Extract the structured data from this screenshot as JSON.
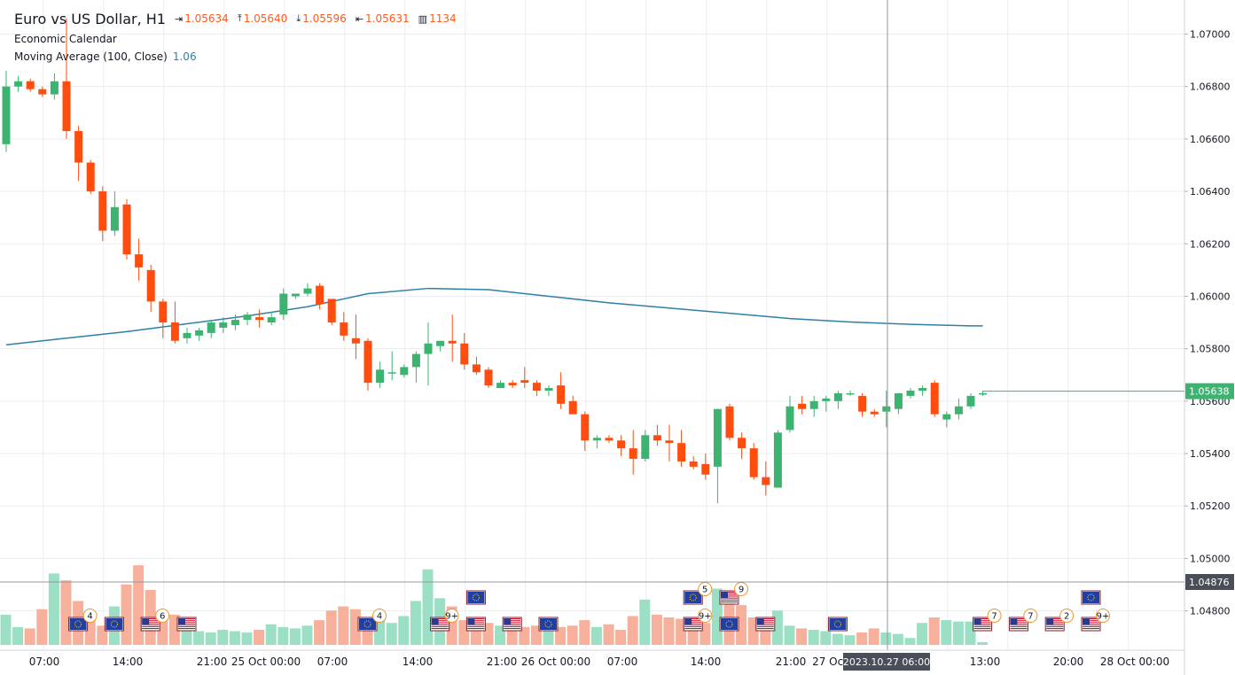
{
  "legend": {
    "symbol": "Euro vs US Dollar, H1",
    "open": "1.05634",
    "high": "1.05640",
    "low": "1.05596",
    "close": "1.05631",
    "volume": "1134",
    "economic_calendar": "Economic Calendar",
    "ma_label": "Moving Average (100, Close)",
    "ma_value": "1.06"
  },
  "colors": {
    "up": "#3cb371",
    "down": "#ff4d0f",
    "up_volume": "#9be0c5",
    "down_volume": "#f7b09b",
    "ma": "#2f7fa8",
    "grid": "#eaedf1",
    "crosshair": "#9598a1",
    "crosshair_tag": "#4a4e59",
    "price_tag": "#3cb371"
  },
  "price_axis": {
    "ticks": [
      "1.07000",
      "1.06800",
      "1.06600",
      "1.06400",
      "1.06200",
      "1.06000",
      "1.05800",
      "1.05600",
      "1.05400",
      "1.05200",
      "1.05000",
      "1.04800"
    ],
    "current_price": "1.05638",
    "crosshair_price": "1.04876"
  },
  "time_axis": {
    "labels": [
      "07:00",
      "14:00",
      "21:00",
      "25 Oct 00:00",
      "07:00",
      "14:00",
      "21:00",
      "26 Oct 00:00",
      "07:00",
      "14:00",
      "21:00",
      "27 Oct",
      "13:00",
      "20:00",
      "28 Oct 00:00"
    ],
    "crosshair_time": "2023.10.27 06:00"
  },
  "chart_data": {
    "type": "candlestick",
    "symbol": "Euro vs US Dollar",
    "timeframe": "H1",
    "y_range": [
      1.0465,
      1.0713
    ],
    "ohlc": [
      [
        1.0658,
        1.0686,
        1.0655,
        1.068
      ],
      [
        1.068,
        1.0684,
        1.0678,
        1.0682
      ],
      [
        1.0682,
        1.0683,
        1.0678,
        1.0679
      ],
      [
        1.0679,
        1.068,
        1.0676,
        1.0677
      ],
      [
        1.0677,
        1.0685,
        1.0675,
        1.0682
      ],
      [
        1.0682,
        1.0706,
        1.066,
        1.0663
      ],
      [
        1.0663,
        1.0665,
        1.0644,
        1.0651
      ],
      [
        1.0651,
        1.0652,
        1.0639,
        1.064
      ],
      [
        1.064,
        1.0642,
        1.0621,
        1.0625
      ],
      [
        1.0625,
        1.064,
        1.0623,
        1.0634
      ],
      [
        1.0635,
        1.0637,
        1.0614,
        1.0616
      ],
      [
        1.0616,
        1.0622,
        1.0606,
        1.0611
      ],
      [
        1.061,
        1.0612,
        1.0594,
        1.0598
      ],
      [
        1.0598,
        1.0599,
        1.0584,
        1.059
      ],
      [
        1.059,
        1.0598,
        1.0582,
        1.0583
      ],
      [
        1.0584,
        1.0588,
        1.0582,
        1.0586
      ],
      [
        1.0585,
        1.0588,
        1.0583,
        1.0587
      ],
      [
        1.0586,
        1.0591,
        1.0584,
        1.059
      ],
      [
        1.0588,
        1.0592,
        1.0586,
        1.059
      ],
      [
        1.0589,
        1.0593,
        1.0587,
        1.0591
      ],
      [
        1.0591,
        1.0594,
        1.0589,
        1.0593
      ],
      [
        1.0592,
        1.0595,
        1.0588,
        1.0591
      ],
      [
        1.059,
        1.0594,
        1.0589,
        1.0592
      ],
      [
        1.0593,
        1.0603,
        1.0591,
        1.0601
      ],
      [
        1.06,
        1.0601,
        1.0599,
        1.0601
      ],
      [
        1.0601,
        1.0605,
        1.06,
        1.0603
      ],
      [
        1.0604,
        1.0605,
        1.0595,
        1.0597
      ],
      [
        1.0599,
        1.0599,
        1.0589,
        1.059
      ],
      [
        1.059,
        1.0594,
        1.0583,
        1.0585
      ],
      [
        1.0584,
        1.0593,
        1.0576,
        1.0582
      ],
      [
        1.0583,
        1.0584,
        1.0564,
        1.0567
      ],
      [
        1.0567,
        1.0575,
        1.0565,
        1.0572
      ],
      [
        1.0571,
        1.0579,
        1.0568,
        1.0571
      ],
      [
        1.057,
        1.0574,
        1.0569,
        1.0573
      ],
      [
        1.0573,
        1.0579,
        1.0567,
        1.0578
      ],
      [
        1.0578,
        1.059,
        1.0566,
        1.0582
      ],
      [
        1.0581,
        1.0583,
        1.0579,
        1.0583
      ],
      [
        1.0583,
        1.0593,
        1.0575,
        1.0582
      ],
      [
        1.0582,
        1.0586,
        1.0572,
        1.0574
      ],
      [
        1.0574,
        1.0577,
        1.057,
        1.0571
      ],
      [
        1.0572,
        1.0573,
        1.0565,
        1.0566
      ],
      [
        1.0565,
        1.0568,
        1.0565,
        1.0567
      ],
      [
        1.0567,
        1.0568,
        1.0565,
        1.0566
      ],
      [
        1.0568,
        1.0573,
        1.0565,
        1.0567
      ],
      [
        1.0567,
        1.0568,
        1.0562,
        1.0564
      ],
      [
        1.0564,
        1.0566,
        1.0562,
        1.0565
      ],
      [
        1.0566,
        1.0571,
        1.0557,
        1.0559
      ],
      [
        1.056,
        1.0562,
        1.0555,
        1.0555
      ],
      [
        1.0555,
        1.0556,
        1.0541,
        1.0545
      ],
      [
        1.0545,
        1.0547,
        1.0542,
        1.0546
      ],
      [
        1.0546,
        1.0547,
        1.0544,
        1.0545
      ],
      [
        1.0545,
        1.0547,
        1.0539,
        1.0542
      ],
      [
        1.0542,
        1.0549,
        1.0532,
        1.0538
      ],
      [
        1.0538,
        1.0549,
        1.0537,
        1.0547
      ],
      [
        1.0547,
        1.0551,
        1.0543,
        1.0545
      ],
      [
        1.0545,
        1.0551,
        1.0537,
        1.0544
      ],
      [
        1.0544,
        1.0549,
        1.0535,
        1.0537
      ],
      [
        1.0537,
        1.0539,
        1.0534,
        1.0535
      ],
      [
        1.0536,
        1.054,
        1.053,
        1.0532
      ],
      [
        1.0535,
        1.0557,
        1.0521,
        1.0557
      ],
      [
        1.0558,
        1.0559,
        1.0545,
        1.0546
      ],
      [
        1.0546,
        1.0548,
        1.0538,
        1.0542
      ],
      [
        1.0542,
        1.0544,
        1.053,
        1.0531
      ],
      [
        1.0531,
        1.0537,
        1.0524,
        1.0528
      ],
      [
        1.0527,
        1.0549,
        1.0527,
        1.0548
      ],
      [
        1.0549,
        1.0562,
        1.0548,
        1.0558
      ],
      [
        1.0559,
        1.0562,
        1.0555,
        1.0557
      ],
      [
        1.0557,
        1.0562,
        1.0554,
        1.056
      ],
      [
        1.056,
        1.0562,
        1.0556,
        1.0561
      ],
      [
        1.056,
        1.0564,
        1.0557,
        1.0563
      ],
      [
        1.0563,
        1.0564,
        1.0562,
        1.0563
      ],
      [
        1.0562,
        1.0563,
        1.0554,
        1.0556
      ],
      [
        1.0556,
        1.0557,
        1.0554,
        1.0555
      ],
      [
        1.0556,
        1.0564,
        1.055,
        1.0558
      ],
      [
        1.0557,
        1.0563,
        1.0555,
        1.0563
      ],
      [
        1.0562,
        1.0565,
        1.0561,
        1.0564
      ],
      [
        1.0564,
        1.0566,
        1.0562,
        1.0565
      ],
      [
        1.0567,
        1.0568,
        1.0554,
        1.0555
      ],
      [
        1.0553,
        1.0556,
        1.055,
        1.0555
      ],
      [
        1.0555,
        1.0561,
        1.0553,
        1.0558
      ],
      [
        1.0558,
        1.0563,
        1.0557,
        1.0562
      ],
      [
        1.0563,
        1.0564,
        1.0562,
        1.0563
      ]
    ],
    "volume": [
      22,
      13,
      12,
      26,
      52,
      47,
      32,
      20,
      14,
      28,
      44,
      58,
      40,
      24,
      22,
      12,
      10,
      9,
      11,
      10,
      9,
      11,
      15,
      13,
      12,
      14,
      18,
      25,
      28,
      26,
      18,
      20,
      16,
      21,
      32,
      55,
      34,
      28,
      18,
      17,
      16,
      14,
      12,
      13,
      14,
      12,
      13,
      14,
      18,
      13,
      15,
      11,
      21,
      33,
      22,
      20,
      19,
      18,
      16,
      41,
      35,
      29,
      20,
      16,
      25,
      14,
      12,
      11,
      10,
      8,
      7,
      9,
      12,
      9,
      8,
      5,
      16,
      20,
      18,
      17,
      17,
      2
    ],
    "moving_average": [
      [
        0,
        1.05815
      ],
      [
        5,
        1.0584
      ],
      [
        10,
        1.05865
      ],
      [
        15,
        1.05895
      ],
      [
        20,
        1.05925
      ],
      [
        25,
        1.0596
      ],
      [
        30,
        1.0601
      ],
      [
        35,
        1.0603
      ],
      [
        40,
        1.06025
      ],
      [
        45,
        1.06
      ],
      [
        50,
        1.05975
      ],
      [
        55,
        1.05955
      ],
      [
        60,
        1.05935
      ],
      [
        65,
        1.05915
      ],
      [
        70,
        1.05902
      ],
      [
        75,
        1.05893
      ],
      [
        80,
        1.05887
      ],
      [
        81,
        1.05887
      ]
    ],
    "calendar_events": [
      {
        "flag": "eu",
        "x_index": 6,
        "badge": "4"
      },
      {
        "flag": "eu",
        "x_index": 9,
        "badge": ""
      },
      {
        "flag": "us",
        "x_index": 12,
        "badge": "6"
      },
      {
        "flag": "us",
        "x_index": 15,
        "badge": ""
      },
      {
        "flag": "eu",
        "x_index": 30,
        "badge": "4"
      },
      {
        "flag": "us",
        "x_index": 36,
        "badge": "9+"
      },
      {
        "flag": "us",
        "x_index": 39,
        "badge": ""
      },
      {
        "flag": "eu",
        "x_index": 39,
        "badge": ""
      },
      {
        "flag": "us",
        "x_index": 42,
        "badge": ""
      },
      {
        "flag": "eu",
        "x_index": 45,
        "badge": ""
      },
      {
        "flag": "us",
        "x_index": 57,
        "badge": "9+"
      },
      {
        "flag": "eu",
        "x_index": 57,
        "badge": "5"
      },
      {
        "flag": "eu",
        "x_index": 60,
        "badge": ""
      },
      {
        "flag": "us",
        "x_index": 60,
        "badge": "9"
      },
      {
        "flag": "us",
        "x_index": 63,
        "badge": ""
      },
      {
        "flag": "eu",
        "x_index": 69,
        "badge": ""
      },
      {
        "flag": "us",
        "x_index": 81,
        "badge": "7"
      },
      {
        "flag": "us",
        "x_index": 84,
        "badge": "7"
      },
      {
        "flag": "us",
        "x_index": 87,
        "badge": "2"
      },
      {
        "flag": "us",
        "x_index": 90,
        "badge": "9+"
      },
      {
        "flag": "eu",
        "x_index": 90,
        "badge": ""
      }
    ]
  }
}
